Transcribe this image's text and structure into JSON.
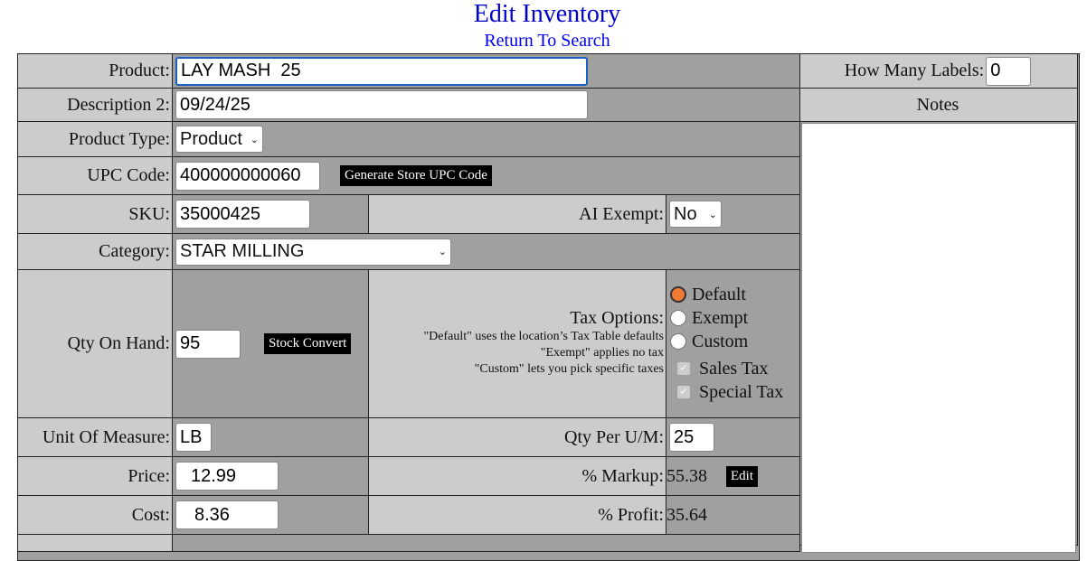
{
  "header": {
    "title": "Edit Inventory",
    "return_link": "Return To Search"
  },
  "form": {
    "product": {
      "label": "Product:",
      "value": "LAY MASH  25"
    },
    "description2": {
      "label": "Description 2:",
      "value": "09/24/25"
    },
    "product_type": {
      "label": "Product Type:",
      "value": "Product"
    },
    "upc": {
      "label": "UPC Code:",
      "value": "400000000060",
      "button": "Generate Store UPC Code"
    },
    "sku": {
      "label": "SKU:",
      "value": "35000425"
    },
    "ai_exempt": {
      "label": "AI Exempt:",
      "value": "No"
    },
    "category": {
      "label": "Category:",
      "value": "STAR MILLING"
    },
    "qty_on_hand": {
      "label": "Qty On Hand:",
      "value": "95",
      "button": "Stock Convert"
    },
    "tax": {
      "label": "Tax Options:",
      "help": [
        "\"Default\" uses the location’s Tax Table defaults",
        "\"Exempt\" applies no tax",
        "\"Custom\" lets you pick specific taxes"
      ],
      "options": [
        "Default",
        "Exempt",
        "Custom"
      ],
      "selected": "Default",
      "taxes": [
        "Sales Tax",
        "Special Tax"
      ]
    },
    "unit": {
      "label": "Unit Of Measure:",
      "value": "LB"
    },
    "qty_per_um": {
      "label": "Qty Per U/M:",
      "value": "25"
    },
    "price": {
      "label": "Price:",
      "value": "12.99"
    },
    "markup": {
      "label": "% Markup:",
      "value": "55.38",
      "button": "Edit"
    },
    "cost": {
      "label": "Cost:",
      "value": "8.36"
    },
    "profit": {
      "label": "% Profit:",
      "value": "35.64"
    }
  },
  "side": {
    "labels_label": "How Many Labels:",
    "labels_value": "0",
    "notes_label": "Notes",
    "notes_value": ""
  },
  "colors": {
    "title": "#0000cc",
    "label_bg": "#cccccc",
    "value_bg": "#a0a0a0",
    "radio_selected": "#f07a33"
  }
}
